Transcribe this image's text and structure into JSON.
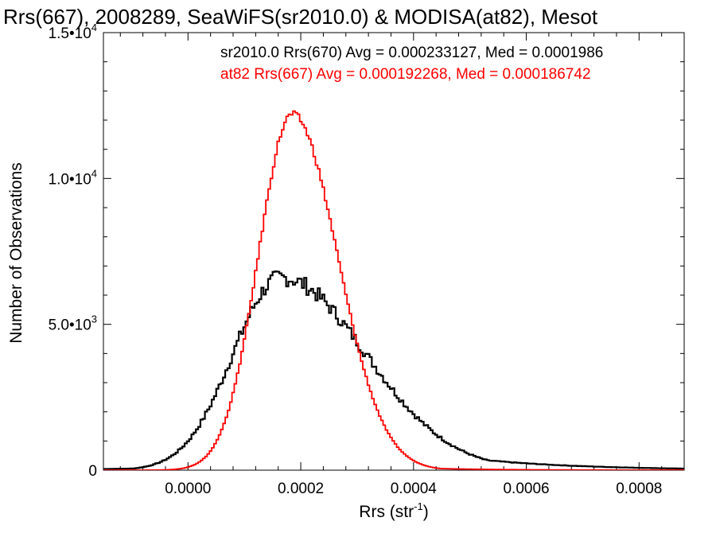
{
  "chart_data": {
    "type": "histogram",
    "title": "Rrs(667), 2008289, SeaWiFS(sr2010.0) & MODISA(at82), Mesot",
    "xlabel": "Rrs (str",
    "xlabel_sup": "-1",
    "xlabel_close": ")",
    "ylabel": "Number of Observations",
    "xlim": [
      -0.00015,
      0.00088
    ],
    "ylim": [
      0,
      15000
    ],
    "x_ticks": [
      {
        "value": 0.0,
        "label": "0.0000"
      },
      {
        "value": 0.0002,
        "label": "0.0002"
      },
      {
        "value": 0.0004,
        "label": "0.0004"
      },
      {
        "value": 0.0006,
        "label": "0.0006"
      },
      {
        "value": 0.0008,
        "label": "0.0008"
      }
    ],
    "y_ticks": [
      {
        "value": 0,
        "mant": "0",
        "exp": ""
      },
      {
        "value": 5000,
        "mant": "5.0•10",
        "exp": "3"
      },
      {
        "value": 10000,
        "mant": "1.0•10",
        "exp": "4"
      },
      {
        "value": 15000,
        "mant": "1.5•10",
        "exp": "4"
      }
    ],
    "series": [
      {
        "name": "sr2010.0 Rrs(670)",
        "legend": "sr2010.0 Rrs(670) Avg = 0.000233127, Med = 0.0001986",
        "color": "#000000",
        "peak_x": 0.000165,
        "peak_y": 6600,
        "sigma_left": 8.5e-05,
        "sigma_right": 0.00015,
        "tail_scale": 0.0
      },
      {
        "name": "at82 Rrs(667)",
        "legend": "at82 Rrs(667) Avg = 0.000192268, Med = 0.000186742",
        "color": "#ff0000",
        "peak_x": 0.000185,
        "peak_y": 12200,
        "sigma_left": 6e-05,
        "sigma_right": 8e-05,
        "tail_scale": 0.0
      }
    ]
  }
}
